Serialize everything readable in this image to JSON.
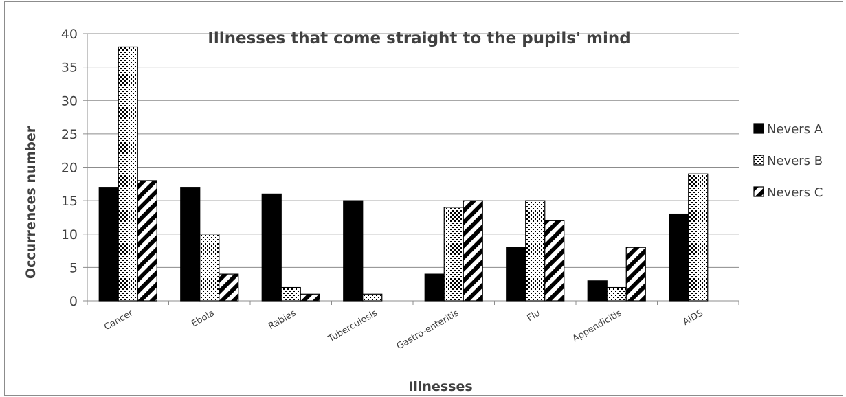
{
  "chart_data": {
    "type": "bar",
    "title": "Illnesses that come straight to the pupils' mind",
    "xlabel": "Illnesses",
    "ylabel": "Occurrences number",
    "ylim": [
      0,
      40
    ],
    "yticks": [
      0,
      5,
      10,
      15,
      20,
      25,
      30,
      35,
      40
    ],
    "grid": true,
    "legend_position": "right",
    "categories": [
      "Cancer",
      "Ebola",
      "Rabies",
      "Tuberculosis",
      "Gastro-enteritis",
      "Flu",
      "Appendicitis",
      "AIDS"
    ],
    "series": [
      {
        "name": "Nevers A",
        "pattern": "solid",
        "color": "#000000",
        "values": [
          17,
          17,
          16,
          15,
          4,
          8,
          3,
          13
        ]
      },
      {
        "name": "Nevers B",
        "pattern": "dots",
        "color": "#000000",
        "values": [
          38,
          10,
          2,
          1,
          14,
          15,
          2,
          19
        ]
      },
      {
        "name": "Nevers C",
        "pattern": "diagonal-stripes",
        "color": "#000000",
        "values": [
          18,
          4,
          1,
          0,
          15,
          12,
          8,
          0
        ]
      }
    ]
  }
}
